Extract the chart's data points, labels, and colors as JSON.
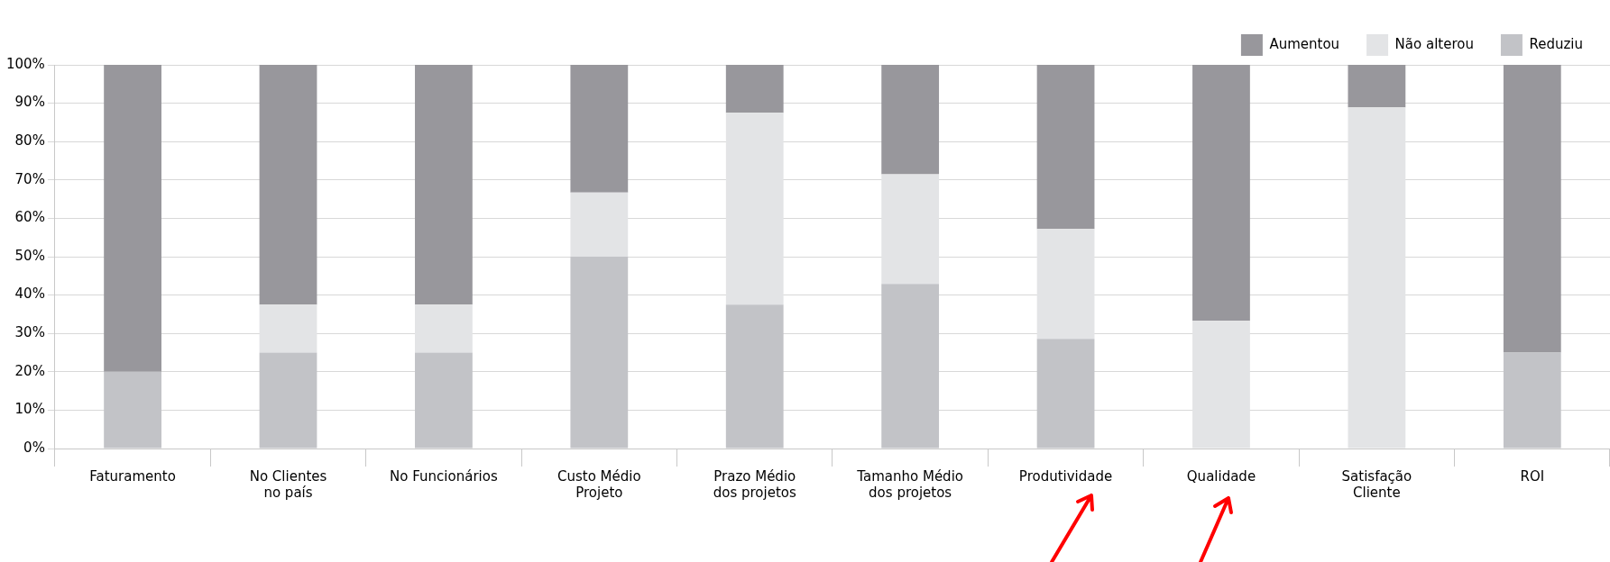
{
  "chart_data": {
    "type": "bar",
    "stacked": true,
    "categories": [
      "Faturamento",
      "No Clientes\nno país",
      "No Funcionários",
      "Custo Médio\nProjeto",
      "Prazo Médio\ndos projetos",
      "Tamanho Médio\ndos projetos",
      "Produtividade",
      "Qualidade",
      "Satisfação\nCliente",
      "ROI"
    ],
    "series": [
      {
        "name": "Reduziu",
        "color": "#c2c3c7",
        "values": [
          20,
          25,
          25,
          50,
          37.5,
          42.9,
          28.6,
          0,
          0,
          25
        ]
      },
      {
        "name": "Não alterou",
        "color": "#e3e4e6",
        "values": [
          0,
          12.5,
          12.5,
          16.7,
          50,
          28.6,
          28.6,
          33.3,
          88.9,
          0
        ]
      },
      {
        "name": "Aumentou",
        "color": "#98979c",
        "values": [
          80,
          62.5,
          62.5,
          33.3,
          12.5,
          28.5,
          42.8,
          66.7,
          11.1,
          75
        ]
      }
    ],
    "ylim": [
      0,
      100
    ],
    "yticks": [
      {
        "value": 0,
        "label": "0%"
      },
      {
        "value": 10,
        "label": "10%"
      },
      {
        "value": 20,
        "label": "20%"
      },
      {
        "value": 30,
        "label": "30%"
      },
      {
        "value": 40,
        "label": "40%"
      },
      {
        "value": 50,
        "label": "50%"
      },
      {
        "value": 60,
        "label": "60%"
      },
      {
        "value": 70,
        "label": "70%"
      },
      {
        "value": 80,
        "label": "80%"
      },
      {
        "value": 90,
        "label": "90%"
      },
      {
        "value": 100,
        "label": "100%"
      }
    ],
    "grid": "y",
    "legend": "top right"
  }
}
